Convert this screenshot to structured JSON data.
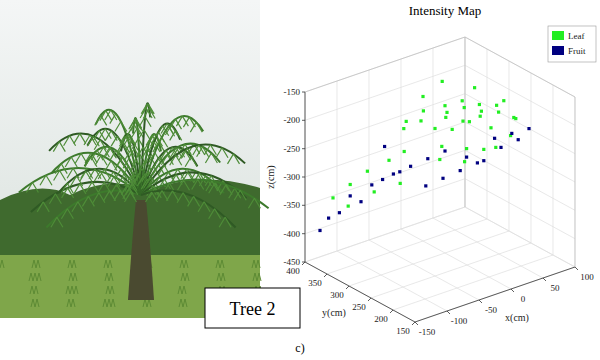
{
  "figure": {
    "photo_label": "Tree 2",
    "panel_label": "c)"
  },
  "chart_data": {
    "type": "scatter3d",
    "title": "Intensity Map",
    "xlabel": "x(cm)",
    "ylabel": "y(cm)",
    "zlabel": "z(cm)",
    "xlim": [
      -150,
      100
    ],
    "xticks": [
      -150,
      -100,
      -50,
      0,
      50,
      100
    ],
    "ylim": [
      150,
      400
    ],
    "yticks": [
      150,
      200,
      250,
      300,
      350,
      400
    ],
    "zlim": [
      -450,
      -150
    ],
    "zticks": [
      -450,
      -400,
      -350,
      -300,
      -250,
      -200,
      -150
    ],
    "grid": true,
    "legend": "upper right",
    "series": [
      {
        "name": "Leaf",
        "color": "#22ee22",
        "x": [
          -20,
          0,
          20,
          40,
          60,
          -40,
          10,
          30,
          50,
          70,
          -10,
          15,
          35,
          55,
          80,
          -30,
          5,
          25,
          45,
          65,
          90,
          -5,
          20,
          40,
          75,
          -60,
          -80,
          -100,
          -120,
          -50,
          0,
          30,
          60,
          85,
          -15,
          10,
          45,
          -70,
          -90,
          -110
        ],
        "y": [
          320,
          300,
          290,
          280,
          270,
          330,
          310,
          300,
          290,
          280,
          340,
          320,
          310,
          300,
          260,
          350,
          330,
          320,
          310,
          290,
          270,
          300,
          280,
          270,
          260,
          340,
          360,
          370,
          380,
          320,
          350,
          350,
          320,
          290,
          290,
          270,
          250,
          300,
          330,
          360
        ],
        "z": [
          -200,
          -190,
          -185,
          -195,
          -200,
          -215,
          -210,
          -205,
          -215,
          -220,
          -230,
          -225,
          -235,
          -230,
          -225,
          -240,
          -245,
          -250,
          -240,
          -250,
          -235,
          -260,
          -265,
          -270,
          -255,
          -280,
          -300,
          -320,
          -340,
          -260,
          -195,
          -180,
          -190,
          -210,
          -275,
          -280,
          -260,
          -300,
          -320,
          -350
        ]
      },
      {
        "name": "Fruit",
        "color": "#000080",
        "x": [
          -60,
          -80,
          -100,
          -40,
          -20,
          0,
          -90,
          -110,
          -70,
          -50,
          20,
          40,
          60,
          80,
          -30,
          -10,
          10,
          30,
          -120,
          -130,
          50,
          70,
          90,
          -60
        ],
        "y": [
          330,
          350,
          370,
          320,
          310,
          300,
          360,
          380,
          340,
          330,
          280,
          270,
          260,
          250,
          300,
          290,
          280,
          270,
          390,
          395,
          260,
          250,
          240,
          350
        ],
        "z": [
          -300,
          -320,
          -340,
          -290,
          -280,
          -270,
          -350,
          -370,
          -310,
          -300,
          -280,
          -290,
          -270,
          -260,
          -320,
          -310,
          -300,
          -290,
          -380,
          -400,
          -250,
          -245,
          -240,
          -260
        ]
      }
    ]
  }
}
